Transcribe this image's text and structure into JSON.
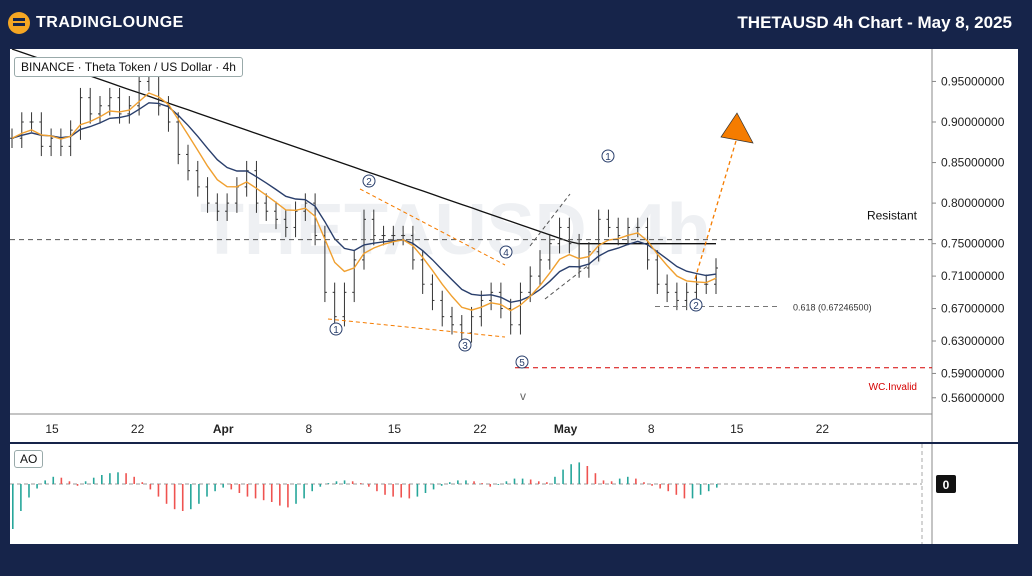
{
  "header": {
    "logo_text": "TRADINGLOUNGE",
    "title": "THETAUSD 4h Chart - May 8, 2025"
  },
  "legend": {
    "symbol": "BINANCE · Theta Token / US Dollar · 4h"
  },
  "watermark": "THETAUSD, 4h",
  "colors": {
    "background": "#16244a",
    "accent": "#f5a623",
    "projection": "#f57c00",
    "invalid": "#d50000",
    "ema_fast": "#f0a030",
    "ema_slow": "#2a3f6c",
    "ma_long": "#111111",
    "ao_up": "#26a69a",
    "ao_down": "#ef5350"
  },
  "chart_data": [
    {
      "type": "line",
      "title": "THETAUSD 4h Chart - May 8, 2025",
      "x_tick_labels": [
        "15",
        "22",
        "Apr",
        "8",
        "15",
        "22",
        "May",
        "8",
        "15",
        "22"
      ],
      "y_tick_labels": [
        "0.95000000",
        "0.90000000",
        "0.85000000",
        "0.80000000",
        "0.75000000",
        "0.71000000",
        "0.67000000",
        "0.63000000",
        "0.59000000",
        "0.56000000"
      ],
      "ylim": [
        0.54,
        0.99
      ],
      "series": [
        {
          "values": [
            0.88,
            0.9,
            0.9,
            0.87,
            0.88,
            0.87,
            0.89,
            0.93,
            0.91,
            0.92,
            0.93,
            0.91,
            0.92,
            0.95,
            0.96,
            0.92,
            0.9,
            0.86,
            0.84,
            0.82,
            0.8,
            0.79,
            0.8,
            0.82,
            0.84,
            0.8,
            0.79,
            0.78,
            0.77,
            0.79,
            0.8,
            0.76,
            0.69,
            0.66,
            0.69,
            0.73,
            0.78,
            0.76,
            0.76,
            0.76,
            0.76,
            0.73,
            0.7,
            0.68,
            0.66,
            0.65,
            0.64,
            0.66,
            0.68,
            0.69,
            0.67,
            0.65,
            0.69,
            0.71,
            0.73,
            0.75,
            0.77,
            0.75,
            0.72,
            0.74,
            0.78,
            0.77,
            0.76,
            0.77,
            0.77,
            0.73,
            0.7,
            0.69,
            0.68,
            0.69,
            0.7,
            0.7,
            0.72
          ]
        }
      ],
      "levels": [
        {
          "label": "Resistant",
          "value": 0.755
        },
        {
          "label": "0.618 (0.67246500)",
          "value": 0.6725
        },
        {
          "label": "WC.Invalid",
          "value": 0.597
        }
      ],
      "wave_labels": [
        "1",
        "2",
        "3",
        "4",
        "5",
        "v",
        "1",
        "2"
      ]
    },
    {
      "type": "bar",
      "title": "AO",
      "zero_label": "0",
      "values": [
        -0.05,
        -0.03,
        -0.015,
        -0.005,
        0.004,
        0.008,
        0.007,
        0.003,
        -0.002,
        0.003,
        0.007,
        0.01,
        0.012,
        0.013,
        0.012,
        0.008,
        0.002,
        -0.006,
        -0.014,
        -0.022,
        -0.028,
        -0.03,
        -0.028,
        -0.022,
        -0.014,
        -0.008,
        -0.004,
        -0.006,
        -0.01,
        -0.014,
        -0.016,
        -0.018,
        -0.02,
        -0.024,
        -0.026,
        -0.022,
        -0.016,
        -0.008,
        -0.003,
        0.001,
        0.003,
        0.004,
        0.003,
        0.001,
        -0.003,
        -0.008,
        -0.012,
        -0.014,
        -0.015,
        -0.016,
        -0.014,
        -0.01,
        -0.006,
        -0.002,
        0.002,
        0.004,
        0.004,
        0.003,
        0.001,
        -0.003,
        -0.001,
        0.003,
        0.006,
        0.006,
        0.005,
        0.003,
        0.002,
        0.008,
        0.016,
        0.022,
        0.024,
        0.02,
        0.012,
        0.004,
        0.003,
        0.006,
        0.008,
        0.006,
        0.002,
        -0.002,
        -0.005,
        -0.008,
        -0.012,
        -0.016,
        -0.016,
        -0.012,
        -0.008,
        -0.004
      ]
    }
  ]
}
